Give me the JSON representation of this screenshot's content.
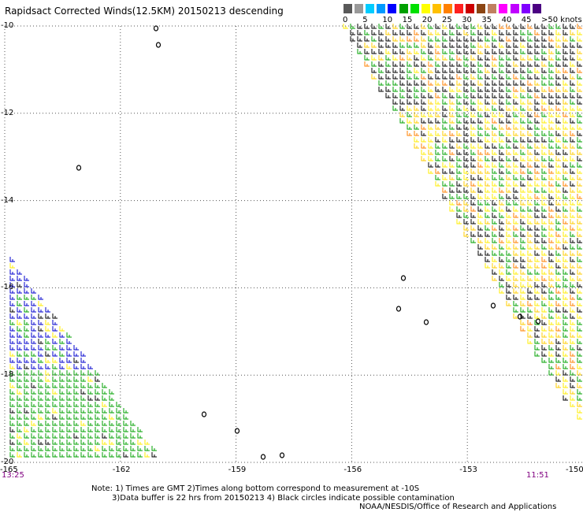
{
  "title": "Rapidsact Corrected Winds(12.5KM) 20150213 descending",
  "legend": {
    "colors": [
      "#595959",
      "#9a9a9a",
      "#00ccff",
      "#0099ff",
      "#0000ff",
      "#00a000",
      "#00e000",
      "#ffff00",
      "#ffc000",
      "#ff8000",
      "#ff2020",
      "#cc0000",
      "#8b4513",
      "#c08060",
      "#ff00ff",
      "#c000ff",
      "#8000ff",
      "#4b0082"
    ],
    "labels": [
      "0",
      "5",
      "10",
      "15",
      "20",
      "25",
      "30",
      "35",
      "40",
      "45",
      ">50 knots"
    ]
  },
  "chart_data": {
    "type": "map",
    "lon_ticks": [
      -165,
      -162,
      -159,
      -156,
      -153,
      -150
    ],
    "lat_ticks": [
      -10,
      -12,
      -14,
      -16,
      -18,
      -20
    ],
    "lon_tick_labels": [
      "-165",
      "-162",
      "-159",
      "-156",
      "-153",
      "-150"
    ],
    "lat_tick_labels": [
      "-10",
      "-12",
      "-14",
      "-16",
      "-18",
      "-20"
    ],
    "lon_range": [
      -165,
      -150
    ],
    "lat_range": [
      -20,
      -10
    ],
    "grid": true,
    "swaths": [
      {
        "polygon": [
          [
            -156.3,
            -10
          ],
          [
            -150,
            -10
          ],
          [
            -150,
            -19.3
          ],
          [
            -151.1,
            -17.8
          ]
        ]
      },
      {
        "polygon": [
          [
            -165,
            -15.2
          ],
          [
            -165,
            -20
          ],
          [
            -160.9,
            -20
          ]
        ]
      }
    ]
  },
  "time_labels": {
    "left": "13:25",
    "right": "11:51"
  },
  "notes": [
    "Note: 1) Times are GMT 2)Times along bottom correspond to measurement at -10S",
    "3)Data buffer is 22 hrs from 20150213 4) Black circles indicate possible contamination",
    "NOAA/NESDIS/Office of Research and Applications"
  ]
}
